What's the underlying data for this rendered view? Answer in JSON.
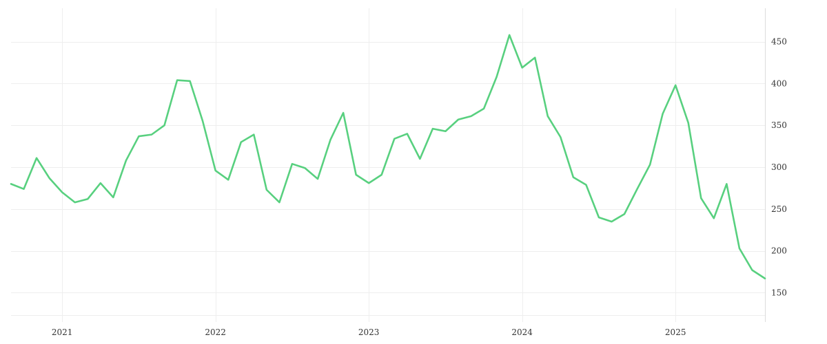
{
  "chart_data": {
    "type": "line",
    "title": "",
    "xlabel": "",
    "ylabel": "",
    "x_start": "2020-09",
    "x_end": "2025-08",
    "ylim": [
      115,
      490
    ],
    "x_ticks": [
      {
        "date": "2021-01",
        "label": "2021"
      },
      {
        "date": "2022-01",
        "label": "2022"
      },
      {
        "date": "2023-01",
        "label": "2023"
      },
      {
        "date": "2024-01",
        "label": "2024"
      },
      {
        "date": "2025-01",
        "label": "2025"
      }
    ],
    "y_ticks": [
      150,
      200,
      250,
      300,
      350,
      400,
      450
    ],
    "y_axis_position": "right",
    "grid": true,
    "legend": "none",
    "line_color": "#58d07f",
    "series": [
      {
        "x": [
          "2020-09",
          "2020-10",
          "2020-11",
          "2020-12",
          "2021-01",
          "2021-02",
          "2021-03",
          "2021-04",
          "2021-05",
          "2021-06",
          "2021-07",
          "2021-08",
          "2021-09",
          "2021-10",
          "2021-11",
          "2021-12",
          "2022-01",
          "2022-02",
          "2022-03",
          "2022-04",
          "2022-05",
          "2022-06",
          "2022-07",
          "2022-08",
          "2022-09",
          "2022-10",
          "2022-11",
          "2022-12",
          "2023-01",
          "2023-02",
          "2023-03",
          "2023-04",
          "2023-05",
          "2023-06",
          "2023-07",
          "2023-08",
          "2023-09",
          "2023-10",
          "2023-11",
          "2023-12",
          "2024-01",
          "2024-02",
          "2024-03",
          "2024-04",
          "2024-05",
          "2024-06",
          "2024-07",
          "2024-08",
          "2024-09",
          "2024-10",
          "2024-11",
          "2024-12",
          "2025-01",
          "2025-02",
          "2025-03",
          "2025-04",
          "2025-05",
          "2025-06",
          "2025-07",
          "2025-08"
        ],
        "values": [
          280,
          274,
          311,
          287,
          270,
          258,
          262,
          281,
          264,
          308,
          337,
          339,
          350,
          404,
          403,
          355,
          296,
          285,
          330,
          339,
          273,
          258,
          304,
          299,
          286,
          333,
          365,
          291,
          281,
          291,
          334,
          340,
          310,
          346,
          343,
          357,
          361,
          370,
          408,
          458,
          419,
          431,
          361,
          336,
          288,
          279,
          240,
          235,
          244,
          274,
          303,
          364,
          398,
          353,
          263,
          239,
          280,
          203,
          177,
          167
        ]
      }
    ]
  }
}
